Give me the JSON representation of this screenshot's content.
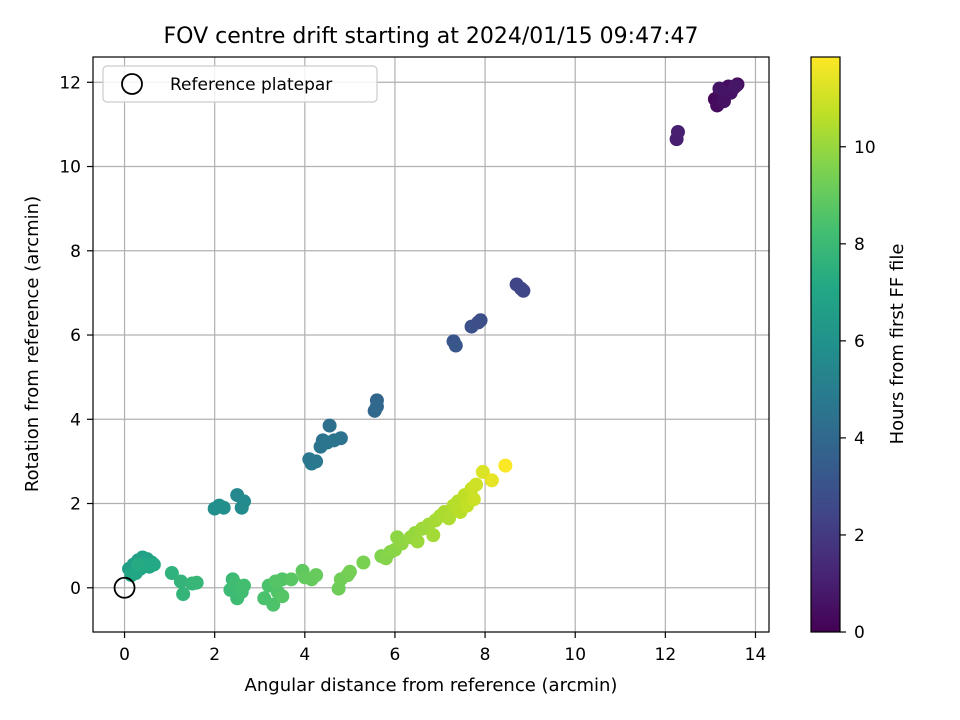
{
  "chart_data": {
    "type": "scatter",
    "title": "FOV centre drift starting at 2024/01/15 09:47:47",
    "xlabel": "Angular distance from reference (arcmin)",
    "ylabel": "Rotation from reference (arcmin)",
    "xlim": [
      -0.7,
      14.3
    ],
    "ylim": [
      -1.05,
      12.6
    ],
    "xticks": [
      0,
      2,
      4,
      6,
      8,
      10,
      12,
      14
    ],
    "yticks": [
      0,
      2,
      4,
      6,
      8,
      10,
      12
    ],
    "grid": true,
    "legend": {
      "placement": "top-left",
      "label": "Reference platepar"
    },
    "reference_point": {
      "x": 0,
      "y": 0
    },
    "colorbar": {
      "label": "Hours from first FF file",
      "range": [
        0,
        11.85
      ],
      "ticks": [
        0,
        2,
        4,
        6,
        8,
        10
      ],
      "colormap": "viridis"
    },
    "points": [
      {
        "x": 13.1,
        "y": 11.6,
        "h": 0.2
      },
      {
        "x": 13.2,
        "y": 11.7,
        "h": 0.3
      },
      {
        "x": 13.3,
        "y": 11.8,
        "h": 0.3
      },
      {
        "x": 13.15,
        "y": 11.45,
        "h": 0.35
      },
      {
        "x": 13.4,
        "y": 11.9,
        "h": 0.4
      },
      {
        "x": 13.5,
        "y": 11.85,
        "h": 0.45
      },
      {
        "x": 13.6,
        "y": 11.95,
        "h": 0.5
      },
      {
        "x": 13.3,
        "y": 11.55,
        "h": 0.55
      },
      {
        "x": 13.45,
        "y": 11.75,
        "h": 0.6
      },
      {
        "x": 13.2,
        "y": 11.85,
        "h": 0.65
      },
      {
        "x": 13.55,
        "y": 11.9,
        "h": 0.7
      },
      {
        "x": 12.25,
        "y": 10.65,
        "h": 1.0
      },
      {
        "x": 12.28,
        "y": 10.82,
        "h": 1.05
      },
      {
        "x": 8.7,
        "y": 7.2,
        "h": 2.4
      },
      {
        "x": 8.8,
        "y": 7.1,
        "h": 2.45
      },
      {
        "x": 8.85,
        "y": 7.05,
        "h": 2.5
      },
      {
        "x": 7.9,
        "y": 6.35,
        "h": 2.8
      },
      {
        "x": 7.7,
        "y": 6.2,
        "h": 2.9
      },
      {
        "x": 7.85,
        "y": 6.3,
        "h": 2.85
      },
      {
        "x": 7.3,
        "y": 5.85,
        "h": 3.1
      },
      {
        "x": 7.35,
        "y": 5.75,
        "h": 3.15
      },
      {
        "x": 5.6,
        "y": 4.45,
        "h": 3.9
      },
      {
        "x": 5.55,
        "y": 4.2,
        "h": 3.95
      },
      {
        "x": 5.6,
        "y": 4.3,
        "h": 4.0
      },
      {
        "x": 4.55,
        "y": 3.85,
        "h": 4.3
      },
      {
        "x": 4.4,
        "y": 3.5,
        "h": 4.4
      },
      {
        "x": 4.8,
        "y": 3.55,
        "h": 4.45
      },
      {
        "x": 4.65,
        "y": 3.5,
        "h": 4.5
      },
      {
        "x": 4.35,
        "y": 3.35,
        "h": 4.55
      },
      {
        "x": 4.5,
        "y": 3.45,
        "h": 4.6
      },
      {
        "x": 4.1,
        "y": 3.05,
        "h": 4.7
      },
      {
        "x": 4.15,
        "y": 2.95,
        "h": 4.75
      },
      {
        "x": 4.25,
        "y": 3.0,
        "h": 4.8
      },
      {
        "x": 2.5,
        "y": 2.2,
        "h": 5.5
      },
      {
        "x": 2.65,
        "y": 2.05,
        "h": 5.6
      },
      {
        "x": 2.6,
        "y": 1.9,
        "h": 5.65
      },
      {
        "x": 2.1,
        "y": 1.95,
        "h": 5.8
      },
      {
        "x": 2.0,
        "y": 1.88,
        "h": 5.85
      },
      {
        "x": 2.2,
        "y": 1.9,
        "h": 5.9
      },
      {
        "x": 0.1,
        "y": 0.45,
        "h": 6.6
      },
      {
        "x": 0.2,
        "y": 0.55,
        "h": 6.65
      },
      {
        "x": 0.3,
        "y": 0.65,
        "h": 6.7
      },
      {
        "x": 0.4,
        "y": 0.72,
        "h": 6.75
      },
      {
        "x": 0.5,
        "y": 0.68,
        "h": 6.8
      },
      {
        "x": 0.6,
        "y": 0.6,
        "h": 6.85
      },
      {
        "x": 0.55,
        "y": 0.5,
        "h": 6.9
      },
      {
        "x": 0.35,
        "y": 0.45,
        "h": 6.95
      },
      {
        "x": 0.25,
        "y": 0.35,
        "h": 7.0
      },
      {
        "x": 0.15,
        "y": 0.3,
        "h": 7.05
      },
      {
        "x": 0.45,
        "y": 0.55,
        "h": 7.1
      },
      {
        "x": 0.65,
        "y": 0.55,
        "h": 7.15
      },
      {
        "x": 0.3,
        "y": 0.55,
        "h": 7.2
      },
      {
        "x": 1.05,
        "y": 0.35,
        "h": 7.6
      },
      {
        "x": 1.25,
        "y": 0.15,
        "h": 7.7
      },
      {
        "x": 1.3,
        "y": -0.15,
        "h": 7.75
      },
      {
        "x": 1.5,
        "y": 0.1,
        "h": 7.8
      },
      {
        "x": 1.6,
        "y": 0.12,
        "h": 7.85
      },
      {
        "x": 2.4,
        "y": 0.2,
        "h": 8.0
      },
      {
        "x": 2.35,
        "y": -0.05,
        "h": 8.05
      },
      {
        "x": 2.5,
        "y": -0.25,
        "h": 8.1
      },
      {
        "x": 2.45,
        "y": 0.1,
        "h": 8.15
      },
      {
        "x": 2.6,
        "y": -0.1,
        "h": 8.2
      },
      {
        "x": 2.65,
        "y": 0.05,
        "h": 8.25
      },
      {
        "x": 3.1,
        "y": -0.25,
        "h": 8.4
      },
      {
        "x": 3.2,
        "y": 0.05,
        "h": 8.45
      },
      {
        "x": 3.3,
        "y": -0.4,
        "h": 8.5
      },
      {
        "x": 3.4,
        "y": -0.1,
        "h": 8.55
      },
      {
        "x": 3.5,
        "y": 0.2,
        "h": 8.6
      },
      {
        "x": 3.35,
        "y": 0.15,
        "h": 8.65
      },
      {
        "x": 3.5,
        "y": -0.2,
        "h": 8.7
      },
      {
        "x": 3.7,
        "y": 0.2,
        "h": 8.75
      },
      {
        "x": 3.95,
        "y": 0.4,
        "h": 8.9
      },
      {
        "x": 4.0,
        "y": 0.25,
        "h": 8.95
      },
      {
        "x": 4.15,
        "y": 0.2,
        "h": 9.0
      },
      {
        "x": 4.25,
        "y": 0.3,
        "h": 9.05
      },
      {
        "x": 4.75,
        "y": -0.02,
        "h": 9.2
      },
      {
        "x": 4.8,
        "y": 0.2,
        "h": 9.25
      },
      {
        "x": 4.95,
        "y": 0.3,
        "h": 9.3
      },
      {
        "x": 5.0,
        "y": 0.38,
        "h": 9.35
      },
      {
        "x": 5.3,
        "y": 0.6,
        "h": 9.45
      },
      {
        "x": 5.7,
        "y": 0.75,
        "h": 9.6
      },
      {
        "x": 5.8,
        "y": 0.7,
        "h": 9.65
      },
      {
        "x": 5.9,
        "y": 0.85,
        "h": 9.7
      },
      {
        "x": 6.0,
        "y": 0.9,
        "h": 9.75
      },
      {
        "x": 6.05,
        "y": 1.2,
        "h": 9.8
      },
      {
        "x": 6.15,
        "y": 1.05,
        "h": 9.85
      },
      {
        "x": 6.35,
        "y": 1.2,
        "h": 9.95
      },
      {
        "x": 6.45,
        "y": 1.3,
        "h": 10.0
      },
      {
        "x": 6.5,
        "y": 1.1,
        "h": 10.05
      },
      {
        "x": 6.6,
        "y": 1.4,
        "h": 10.1
      },
      {
        "x": 6.75,
        "y": 1.5,
        "h": 10.15
      },
      {
        "x": 6.85,
        "y": 1.25,
        "h": 10.2
      },
      {
        "x": 6.9,
        "y": 1.6,
        "h": 10.25
      },
      {
        "x": 7.0,
        "y": 1.7,
        "h": 10.3
      },
      {
        "x": 7.1,
        "y": 1.8,
        "h": 10.35
      },
      {
        "x": 7.2,
        "y": 1.65,
        "h": 10.4
      },
      {
        "x": 7.3,
        "y": 1.95,
        "h": 10.5
      },
      {
        "x": 7.4,
        "y": 2.05,
        "h": 10.55
      },
      {
        "x": 7.45,
        "y": 1.8,
        "h": 10.6
      },
      {
        "x": 7.55,
        "y": 2.2,
        "h": 10.7
      },
      {
        "x": 7.6,
        "y": 1.95,
        "h": 10.75
      },
      {
        "x": 7.7,
        "y": 2.35,
        "h": 10.85
      },
      {
        "x": 7.75,
        "y": 2.1,
        "h": 10.9
      },
      {
        "x": 7.8,
        "y": 2.45,
        "h": 11.0
      },
      {
        "x": 7.95,
        "y": 2.75,
        "h": 11.2
      },
      {
        "x": 8.15,
        "y": 2.55,
        "h": 11.4
      },
      {
        "x": 8.45,
        "y": 2.9,
        "h": 11.8
      }
    ]
  }
}
